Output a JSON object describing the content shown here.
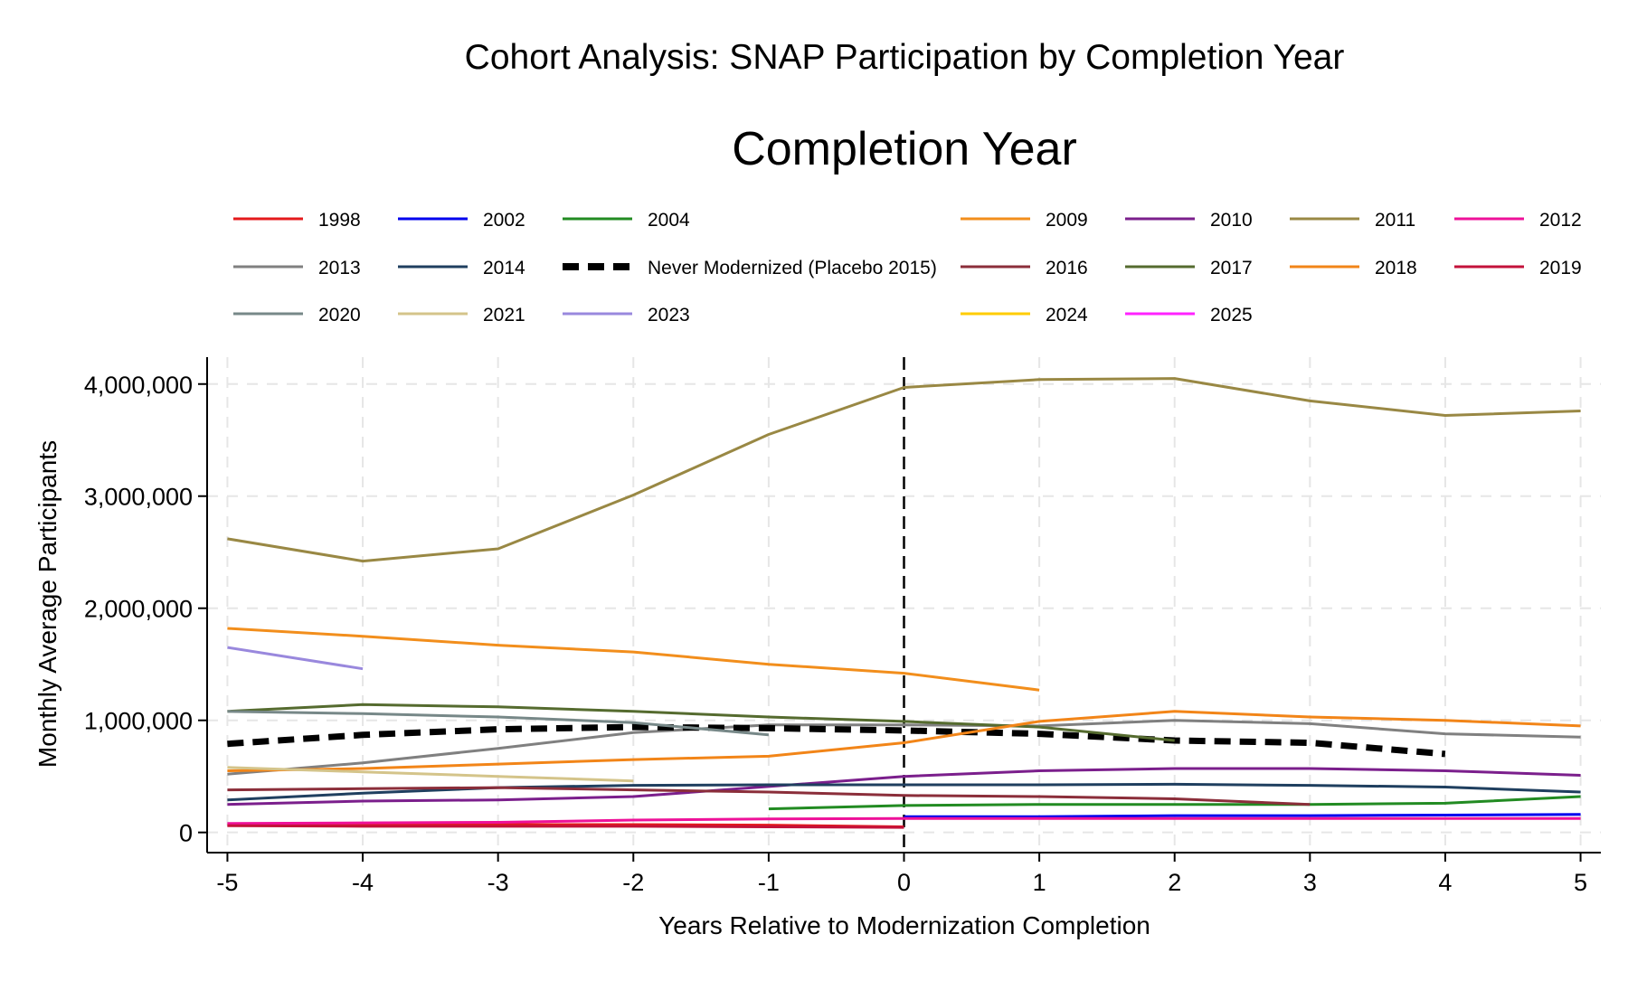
{
  "chart_data": {
    "type": "line",
    "title": "Cohort Analysis: SNAP Participation by Completion Year",
    "legend_title": "Completion Year",
    "legend_position": "top",
    "xlabel": "Years Relative to Modernization Completion",
    "ylabel": "Monthly Average Participants",
    "x_ticks": [
      -5,
      -4,
      -3,
      -2,
      -1,
      0,
      1,
      2,
      3,
      4,
      5
    ],
    "y_ticks": [
      0,
      1000000,
      2000000,
      3000000,
      4000000
    ],
    "y_tick_labels": [
      "0",
      "1,000,000",
      "2,000,000",
      "3,000,000",
      "4,000,000"
    ],
    "xlim": [
      -5.15,
      5.15
    ],
    "ylim": [
      -180000,
      4240000
    ],
    "grid": true,
    "reference_line_x": 0,
    "series": [
      {
        "name": "1998",
        "color": "#e41a1c",
        "x": [
          -5,
          -4,
          -3,
          -2,
          -1,
          0
        ],
        "y": [
          65000,
          65000,
          70000,
          70000,
          65000,
          50000
        ]
      },
      {
        "name": "2002",
        "color": "#0000ee",
        "x": [
          0,
          1,
          2,
          3,
          4,
          5
        ],
        "y": [
          140000,
          140000,
          150000,
          150000,
          155000,
          160000
        ]
      },
      {
        "name": "2004",
        "color": "#228b22",
        "x": [
          -1,
          0,
          1,
          2,
          3,
          4,
          5
        ],
        "y": [
          210000,
          240000,
          250000,
          250000,
          250000,
          260000,
          320000
        ]
      },
      {
        "name": "2009",
        "color": "#f28e1c",
        "x": [
          -5,
          -4,
          -3,
          -2,
          -1,
          0,
          1
        ],
        "y": [
          1820000,
          1750000,
          1670000,
          1610000,
          1500000,
          1420000,
          1270000
        ]
      },
      {
        "name": "2010",
        "color": "#7b1f8c",
        "x": [
          -5,
          -4,
          -3,
          -2,
          -1,
          0,
          1,
          2,
          3,
          4,
          5
        ],
        "y": [
          250000,
          280000,
          290000,
          320000,
          410000,
          500000,
          550000,
          570000,
          570000,
          550000,
          510000
        ]
      },
      {
        "name": "2011",
        "color": "#998844",
        "x": [
          -5,
          -4,
          -3,
          -2,
          -1,
          0,
          1,
          2,
          3,
          4,
          5
        ],
        "y": [
          2620000,
          2420000,
          2530000,
          3010000,
          3550000,
          3970000,
          4040000,
          4050000,
          3850000,
          3720000,
          3760000
        ]
      },
      {
        "name": "2012",
        "color": "#ee1199",
        "x": [
          -5,
          -4,
          -3,
          -2,
          -1,
          0,
          1,
          2,
          3,
          4,
          5
        ],
        "y": [
          80000,
          85000,
          90000,
          110000,
          120000,
          125000,
          125000,
          125000,
          125000,
          125000,
          125000
        ]
      },
      {
        "name": "2013",
        "color": "#808080",
        "x": [
          -5,
          -4,
          -3,
          -2,
          -1,
          0,
          1,
          2,
          3,
          4,
          5
        ],
        "y": [
          520000,
          620000,
          750000,
          890000,
          960000,
          960000,
          950000,
          1000000,
          970000,
          880000,
          850000
        ]
      },
      {
        "name": "2014",
        "color": "#1f3f5f",
        "x": [
          -5,
          -4,
          -3,
          -2,
          -1,
          0,
          1,
          2,
          3,
          4,
          5
        ],
        "y": [
          290000,
          350000,
          400000,
          420000,
          425000,
          425000,
          425000,
          430000,
          420000,
          405000,
          360000
        ]
      },
      {
        "name": "Never Modernized (Placebo 2015)",
        "color": "#000000",
        "dashed": true,
        "x": [
          -5,
          -4,
          -3,
          -2,
          -1,
          0,
          1,
          2,
          3,
          4
        ],
        "y": [
          790000,
          870000,
          920000,
          940000,
          930000,
          910000,
          880000,
          820000,
          800000,
          700000
        ]
      },
      {
        "name": "2016",
        "color": "#8b2e3a",
        "x": [
          -5,
          -4,
          -3,
          -2,
          -1,
          0,
          1,
          2,
          3
        ],
        "y": [
          380000,
          390000,
          400000,
          380000,
          360000,
          330000,
          320000,
          300000,
          250000
        ]
      },
      {
        "name": "2017",
        "color": "#556b2f",
        "x": [
          -5,
          -4,
          -3,
          -2,
          -1,
          0,
          1,
          2
        ],
        "y": [
          1080000,
          1140000,
          1120000,
          1080000,
          1030000,
          990000,
          940000,
          820000
        ]
      },
      {
        "name": "2018",
        "color": "#f28518",
        "x": [
          -5,
          -4,
          -3,
          -2,
          -1,
          0,
          1,
          2,
          3,
          4,
          5
        ],
        "y": [
          550000,
          570000,
          610000,
          650000,
          680000,
          800000,
          990000,
          1080000,
          1030000,
          1000000,
          950000
        ]
      },
      {
        "name": "2019",
        "color": "#c3123a",
        "x": [
          -5,
          -4,
          -3,
          -2,
          -1,
          0
        ],
        "y": [
          60000,
          55000,
          55000,
          55000,
          50000,
          45000
        ]
      },
      {
        "name": "2020",
        "color": "#778888",
        "x": [
          -5,
          -4,
          -3,
          -2,
          -1
        ],
        "y": [
          1080000,
          1060000,
          1030000,
          980000,
          870000
        ]
      },
      {
        "name": "2021",
        "color": "#d4c48a",
        "x": [
          -5,
          -4,
          -3,
          -2
        ],
        "y": [
          580000,
          540000,
          500000,
          460000
        ]
      },
      {
        "name": "2023",
        "color": "#9988dd",
        "x": [
          -5,
          -4
        ],
        "y": [
          1650000,
          1460000
        ]
      },
      {
        "name": "2024",
        "color": "#ffcc00",
        "x": [],
        "y": []
      },
      {
        "name": "2025",
        "color": "#ff22ff",
        "x": [],
        "y": []
      }
    ]
  }
}
